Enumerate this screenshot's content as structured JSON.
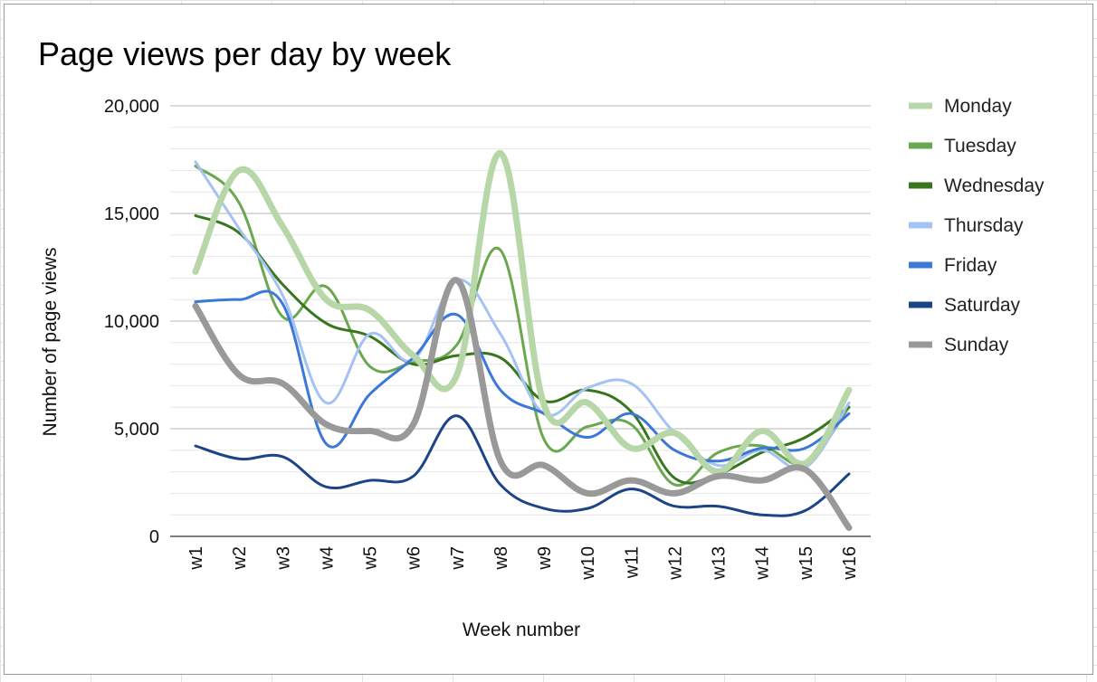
{
  "chart_data": {
    "type": "line",
    "title": "Page views per day by week",
    "xlabel": "Week number",
    "ylabel": "Number of page views",
    "ylim": [
      0,
      20000
    ],
    "y_ticks": [
      0,
      5000,
      10000,
      15000,
      20000
    ],
    "y_tick_labels": [
      "0",
      "5,000",
      "10,000",
      "15,000",
      "20,000"
    ],
    "grid": true,
    "smooth": true,
    "legend_position": "right",
    "categories": [
      "w1",
      "w2",
      "w3",
      "w4",
      "w5",
      "w6",
      "w7",
      "w8",
      "w9",
      "w10",
      "w11",
      "w12",
      "w13",
      "w14",
      "w15",
      "w16"
    ],
    "series": [
      {
        "name": "Monday",
        "color": "#b7d7a8",
        "emphasized": true,
        "values": [
          12300,
          17000,
          14400,
          11000,
          10500,
          8400,
          7500,
          17800,
          6100,
          6200,
          4100,
          4800,
          3000,
          4900,
          3400,
          6800
        ]
      },
      {
        "name": "Tuesday",
        "color": "#6aa84f",
        "emphasized": false,
        "values": [
          17200,
          15500,
          10200,
          11600,
          7900,
          8100,
          8900,
          13300,
          4500,
          5100,
          5200,
          2400,
          3900,
          4200,
          3400,
          6000
        ]
      },
      {
        "name": "Wednesday",
        "color": "#38761d",
        "emphasized": false,
        "values": [
          14900,
          14100,
          11700,
          9900,
          9300,
          8000,
          8400,
          8300,
          6300,
          6800,
          5800,
          2700,
          2900,
          3900,
          4600,
          6000
        ]
      },
      {
        "name": "Thursday",
        "color": "#a4c2f4",
        "emphasized": false,
        "values": [
          17400,
          14300,
          11200,
          6200,
          9400,
          8200,
          11900,
          9400,
          5700,
          6900,
          7100,
          4800,
          3300,
          4000,
          3200,
          6200
        ]
      },
      {
        "name": "Friday",
        "color": "#3c78d8",
        "emphasized": false,
        "values": [
          10900,
          11000,
          10800,
          4300,
          6600,
          8300,
          10300,
          6800,
          5700,
          4600,
          5700,
          4000,
          3500,
          4100,
          4100,
          5700
        ]
      },
      {
        "name": "Saturday",
        "color": "#1c4587",
        "emphasized": false,
        "values": [
          4200,
          3600,
          3700,
          2300,
          2600,
          2800,
          5600,
          2400,
          1300,
          1300,
          2200,
          1400,
          1400,
          1000,
          1200,
          2900
        ]
      },
      {
        "name": "Sunday",
        "color": "#999999",
        "emphasized": true,
        "values": [
          10700,
          7500,
          7100,
          5200,
          4900,
          5200,
          11900,
          3500,
          3300,
          2000,
          2600,
          2000,
          2800,
          2600,
          3100,
          400
        ]
      }
    ]
  }
}
